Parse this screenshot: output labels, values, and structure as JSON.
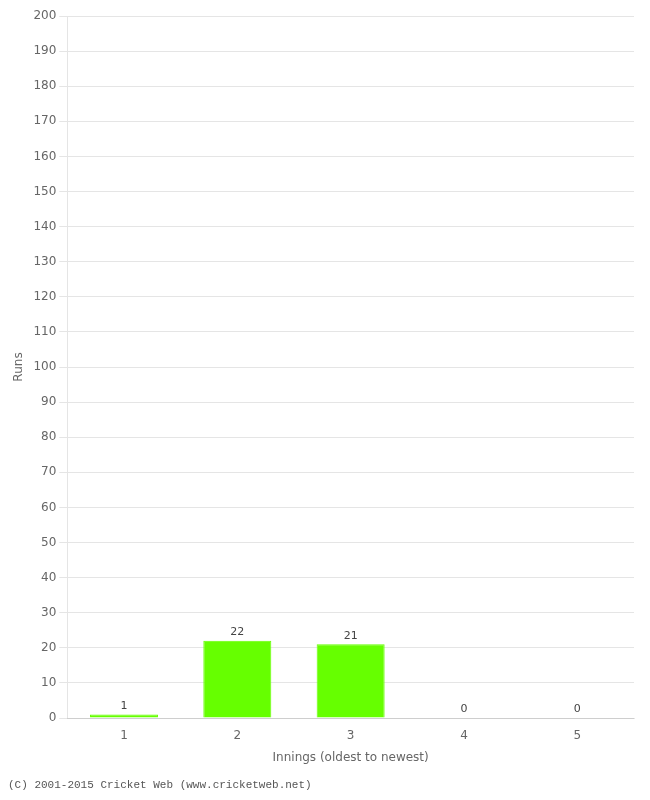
{
  "chart_data": {
    "type": "bar",
    "xlabel": "Innings (oldest to newest)",
    "ylabel": "Runs",
    "categories": [
      1,
      2,
      3,
      4,
      5
    ],
    "values": [
      1,
      22,
      21,
      0,
      0
    ],
    "color": "#66ff00",
    "ylim": [
      0,
      200
    ],
    "yticks": [
      0,
      10,
      20,
      30,
      40,
      50,
      60,
      70,
      80,
      90,
      100,
      110,
      120,
      130,
      140,
      150,
      160,
      170,
      180,
      190,
      200
    ],
    "grid": true,
    "data_labels": true,
    "annotations": [
      "(C) 2001-2015 Cricket Web (www.cricketweb.net)"
    ]
  }
}
